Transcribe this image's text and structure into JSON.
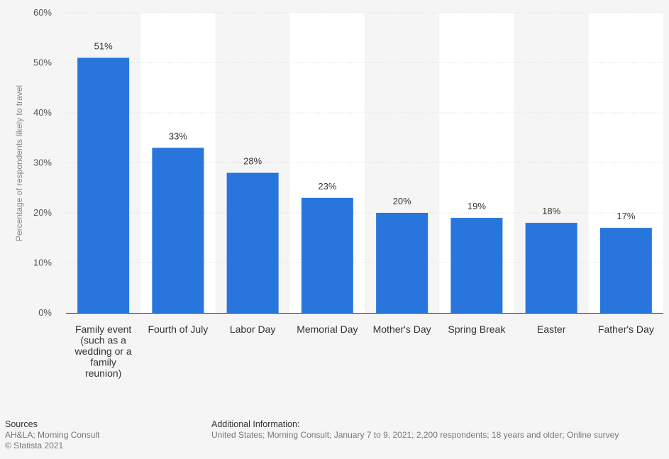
{
  "chart_data": {
    "type": "bar",
    "ylabel": "Percentage of respondents likely to travel",
    "ylim": [
      0,
      60
    ],
    "yticks": [
      0,
      10,
      20,
      30,
      40,
      50,
      60
    ],
    "ytick_labels": [
      "0%",
      "10%",
      "20%",
      "30%",
      "40%",
      "50%",
      "60%"
    ],
    "grid": true,
    "categories": [
      [
        "Family event",
        "(such as a",
        "wedding or a",
        "family",
        "reunion)"
      ],
      [
        "Fourth of July"
      ],
      [
        "Labor Day"
      ],
      [
        "Memorial Day"
      ],
      [
        "Mother's Day"
      ],
      [
        "Spring Break"
      ],
      [
        "Easter"
      ],
      [
        "Father's Day"
      ]
    ],
    "values": [
      51,
      33,
      28,
      23,
      20,
      19,
      18,
      17
    ],
    "value_labels": [
      "51%",
      "33%",
      "28%",
      "23%",
      "20%",
      "19%",
      "18%",
      "17%"
    ],
    "bar_color": "#2876dd"
  },
  "footer": {
    "sources_heading": "Sources",
    "sources_line1": "AH&LA; Morning Consult",
    "sources_line2": "© Statista 2021",
    "additional_heading": "Additional Information:",
    "additional_text": "United States; Morning Consult; January 7 to 9, 2021; 2,200 respondents; 18 years and older; Online survey"
  }
}
